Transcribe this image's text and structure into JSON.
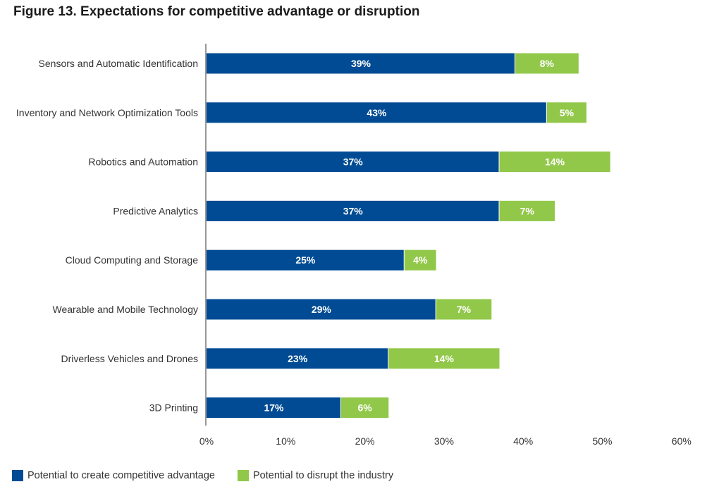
{
  "title": "Figure 13. Expectations for competitive advantage or disruption",
  "chart_data": {
    "type": "bar",
    "orientation": "horizontal",
    "stacked": true,
    "title": "Figure 13. Expectations for competitive advantage or disruption",
    "xlabel": "",
    "ylabel": "",
    "xlim": [
      0,
      60
    ],
    "ticks": [
      "0%",
      "10%",
      "20%",
      "30%",
      "40%",
      "50%",
      "60%"
    ],
    "tick_values": [
      0,
      10,
      20,
      30,
      40,
      50,
      60
    ],
    "grid": false,
    "legend_position": "bottom-left",
    "categories": [
      "Sensors and Automatic Identification",
      "Inventory and Network Optimization Tools",
      "Robotics and Automation",
      "Predictive Analytics",
      "Cloud Computing and Storage",
      "Wearable and Mobile Technology",
      "Driverless Vehicles and Drones",
      "3D Printing"
    ],
    "series": [
      {
        "name": "Potential to create competitive advantage",
        "color": "#004b93",
        "values": [
          39,
          43,
          37,
          37,
          25,
          29,
          23,
          17
        ],
        "labels": [
          "39%",
          "43%",
          "37%",
          "37%",
          "25%",
          "29%",
          "23%",
          "17%"
        ]
      },
      {
        "name": "Potential to disrupt the industry",
        "color": "#92c84a",
        "values": [
          8,
          5,
          14,
          7,
          4,
          7,
          14,
          6
        ],
        "labels": [
          "8%",
          "5%",
          "14%",
          "7%",
          "4%",
          "7%",
          "14%",
          "6%"
        ]
      }
    ]
  }
}
